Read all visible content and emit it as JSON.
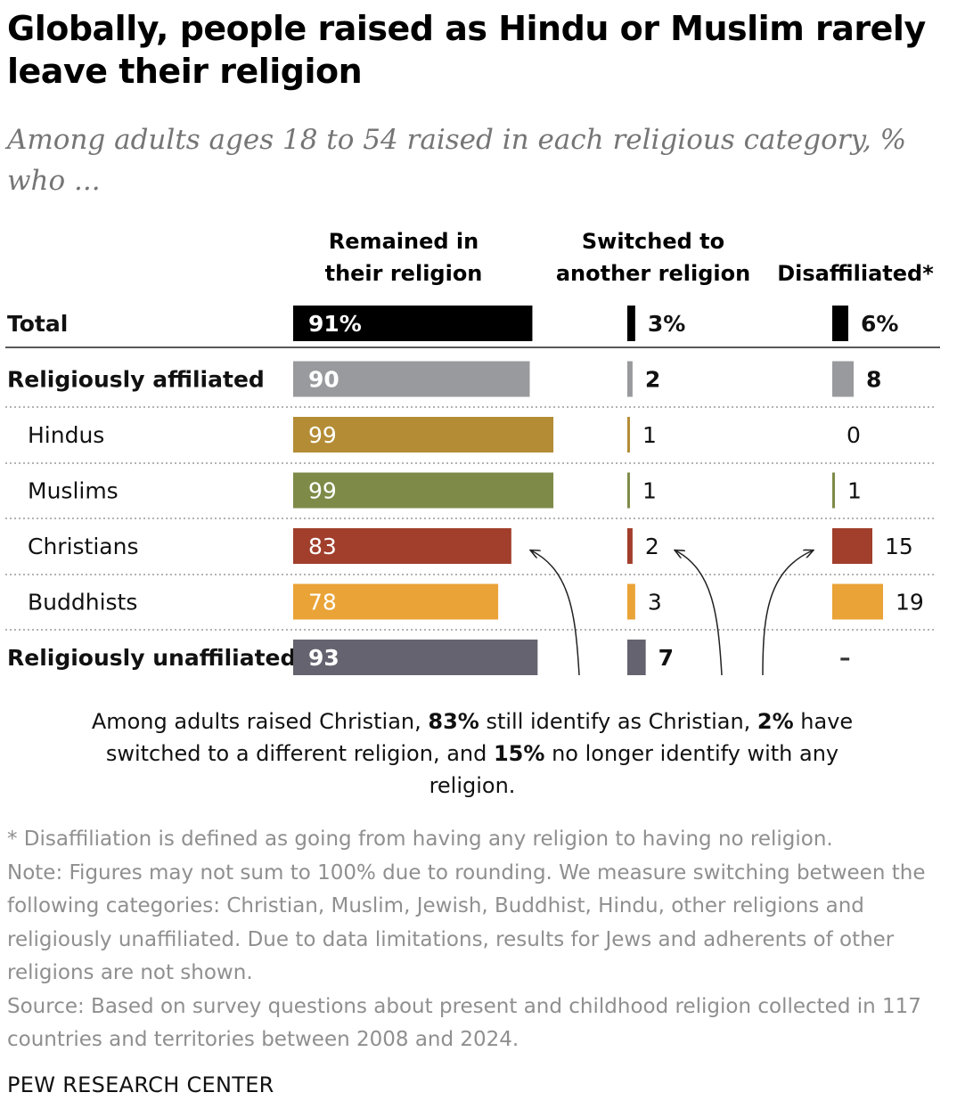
{
  "title": "Globally, people raised as Hindu or Muslim rarely leave their religion",
  "subtitle": "Among adults ages 18 to 54 raised in each religious category, % who ...",
  "chart_data": {
    "type": "bar",
    "columns": [
      {
        "key": "remained",
        "line1": "Remained in",
        "line2": "their religion"
      },
      {
        "key": "switched",
        "line1": "Switched to",
        "line2": "another religion"
      },
      {
        "key": "disaffiliated",
        "line1": "",
        "line2": "Disaffiliated*"
      }
    ],
    "rows": [
      {
        "label": "Total",
        "bold": true,
        "indent": false,
        "color": "#000000",
        "values": [
          91,
          3,
          6
        ],
        "labels": [
          "91%",
          "3%",
          "6%"
        ]
      },
      {
        "label": "Religiously affiliated",
        "bold": true,
        "indent": false,
        "color": "#999a9d",
        "values": [
          90,
          2,
          8
        ],
        "labels": [
          "90",
          "2",
          "8"
        ]
      },
      {
        "label": "Hindus",
        "bold": false,
        "indent": true,
        "color": "#b38c35",
        "values": [
          99,
          1,
          0
        ],
        "labels": [
          "99",
          "1",
          "0"
        ]
      },
      {
        "label": "Muslims",
        "bold": false,
        "indent": true,
        "color": "#7e8b48",
        "values": [
          99,
          1,
          1
        ],
        "labels": [
          "99",
          "1",
          "1"
        ]
      },
      {
        "label": "Christians",
        "bold": false,
        "indent": true,
        "color": "#a13f2c",
        "values": [
          83,
          2,
          15
        ],
        "labels": [
          "83",
          "2",
          "15"
        ]
      },
      {
        "label": "Buddhists",
        "bold": false,
        "indent": true,
        "color": "#eaa336",
        "values": [
          78,
          3,
          19
        ],
        "labels": [
          "78",
          "3",
          "19"
        ]
      },
      {
        "label": "Religiously unaffiliated",
        "bold": true,
        "indent": false,
        "color": "#65636f",
        "values": [
          93,
          7,
          null
        ],
        "labels": [
          "93",
          "7",
          "–"
        ]
      }
    ]
  },
  "callout": {
    "p1": "Among adults raised Christian, ",
    "b1": "83%",
    "p2": " still identify as Christian, ",
    "b2": "2%",
    "p3": " have switched to a different religion, and ",
    "b3": "15%",
    "p4": " no longer identify with any religion."
  },
  "notes": {
    "footnote": "* Disaffiliation is defined as going from having any religion to having no religion.",
    "note": "Note: Figures may not sum to 100% due to rounding. We measure switching between the following categories: Christian, Muslim, Jewish, Buddhist, Hindu, other religions and religiously unaffiliated. Due to data limitations, results for Jews and adherents of other religions are not shown.",
    "source": "Source: Based on survey questions about present and childhood religion collected in 117 countries and territories between 2008 and 2024."
  },
  "brand": "PEW RESEARCH CENTER"
}
